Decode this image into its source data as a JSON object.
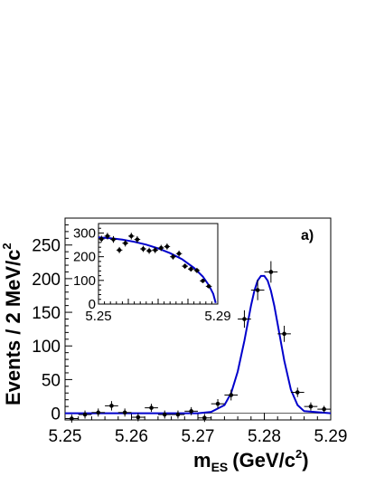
{
  "chart_data": [
    {
      "type": "scatter",
      "panel_label": "a)",
      "xlabel_main": "m",
      "xlabel_sub": "ES",
      "xlabel_units": "(GeV/c",
      "xlabel_exp": "2",
      "xlabel_close": ")",
      "ylabel_main": "Events / 2 MeV/c",
      "ylabel_exp": "2",
      "xlim": [
        5.25,
        5.29
      ],
      "ylim": [
        -10,
        290
      ],
      "xticks": [
        "5.25",
        "5.26",
        "5.27",
        "5.28",
        "5.29"
      ],
      "yticks": [
        "0",
        "50",
        "100",
        "150",
        "200",
        "250"
      ],
      "series": [
        {
          "kind": "data",
          "x": [
            5.251,
            5.253,
            5.255,
            5.257,
            5.259,
            5.261,
            5.263,
            5.265,
            5.267,
            5.269,
            5.271,
            5.273,
            5.275,
            5.277,
            5.279,
            5.281,
            5.283,
            5.285,
            5.287,
            5.289
          ],
          "y": [
            -8,
            -2,
            1,
            11,
            1,
            -6,
            8,
            -2,
            -2,
            3,
            -7,
            14,
            27,
            140,
            183,
            210,
            118,
            31,
            10,
            6
          ],
          "yerr": [
            6,
            6,
            6,
            7,
            6,
            6,
            6,
            6,
            6,
            6,
            6,
            7,
            8,
            13,
            15,
            16,
            12,
            7,
            6,
            5
          ]
        },
        {
          "kind": "fit",
          "color": "#0000cc",
          "x": [
            5.25,
            5.27,
            5.272,
            5.274,
            5.275,
            5.276,
            5.277,
            5.278,
            5.2785,
            5.279,
            5.2795,
            5.28,
            5.2805,
            5.281,
            5.2815,
            5.282,
            5.283,
            5.284,
            5.285,
            5.286,
            5.29
          ],
          "y": [
            0,
            0,
            2,
            12,
            30,
            62,
            108,
            160,
            182,
            197,
            204,
            204,
            197,
            182,
            160,
            133,
            78,
            35,
            12,
            3,
            0
          ]
        }
      ]
    },
    {
      "type": "scatter",
      "role": "inset",
      "xlim": [
        5.25,
        5.29
      ],
      "ylim": [
        0,
        340
      ],
      "xticks": [
        "5.25",
        "5.29"
      ],
      "yticks": [
        "0",
        "100",
        "200",
        "300"
      ],
      "series": [
        {
          "kind": "data",
          "x": [
            5.251,
            5.253,
            5.255,
            5.257,
            5.259,
            5.261,
            5.263,
            5.265,
            5.267,
            5.269,
            5.271,
            5.273,
            5.275,
            5.277,
            5.279,
            5.281,
            5.283,
            5.285,
            5.287
          ],
          "y": [
            275,
            287,
            273,
            228,
            257,
            287,
            273,
            233,
            225,
            228,
            237,
            243,
            200,
            213,
            160,
            148,
            142,
            98,
            75
          ],
          "yerr": [
            14,
            14,
            14,
            13,
            14,
            14,
            14,
            13,
            13,
            13,
            13,
            13,
            12,
            13,
            11,
            11,
            11,
            9,
            8
          ]
        },
        {
          "kind": "fit",
          "color": "#0000cc",
          "x": [
            5.25,
            5.254,
            5.258,
            5.262,
            5.266,
            5.27,
            5.274,
            5.278,
            5.282,
            5.285,
            5.287,
            5.2885,
            5.2893
          ],
          "y": [
            282,
            278,
            272,
            263,
            251,
            235,
            215,
            190,
            153,
            116,
            80,
            43,
            5
          ]
        }
      ]
    }
  ]
}
